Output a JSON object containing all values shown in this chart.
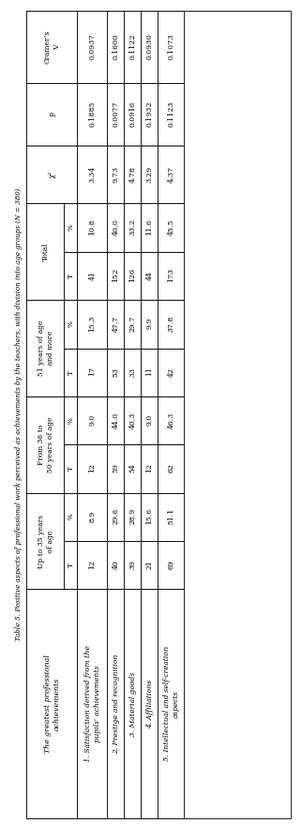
{
  "title": "Table 5. Positive aspects of professional work perceived as achievements by the teachers, with division into age groups (N = 380)",
  "col_header": "The greatest professional\nachievements",
  "group_headers": [
    "Up to 35 years\nof age",
    "From 36 to\n50 years of age",
    "51 years of age\nand more",
    "Total"
  ],
  "stat_headers": [
    "χ²",
    "p",
    "Cramer’s\nV"
  ],
  "sub_headers": [
    "T",
    "%"
  ],
  "rows": [
    {
      "label": "1. Satisfaction derived from the\npupils’ achievements",
      "up35_T": "12",
      "up35_pct": "8.9",
      "fr36_T": "12",
      "fr36_pct": "9.0",
      "ov51_T": "17",
      "ov51_pct": "15.3",
      "tot_T": "41",
      "tot_pct": "10.8",
      "chi2": "3.34",
      "p": "0.1885",
      "cramer": "0.0937"
    },
    {
      "label": "2. Prestige and recognition",
      "up35_T": "40",
      "up35_pct": "29.6",
      "fr36_T": "59",
      "fr36_pct": "44.0",
      "ov51_T": "53",
      "ov51_pct": "47.7",
      "tot_T": "152",
      "tot_pct": "40.0",
      "chi2": "9.73",
      "p": "0.0077",
      "cramer": "0.1600"
    },
    {
      "label": "3. Material goods",
      "up35_T": "39",
      "up35_pct": "28.9",
      "fr36_T": "54",
      "fr36_pct": "40.3",
      "ov51_T": "33",
      "ov51_pct": "29.7",
      "tot_T": "126",
      "tot_pct": "33.2",
      "chi2": "4.78",
      "p": "0.0916",
      "cramer": "0.1122"
    },
    {
      "label": "4. Affiliations",
      "up35_T": "21",
      "up35_pct": "15.6",
      "fr36_T": "12",
      "fr36_pct": "9.0",
      "ov51_T": "11",
      "ov51_pct": "9.9",
      "tot_T": "44",
      "tot_pct": "11.6",
      "chi2": "3.29",
      "p": "0.1932",
      "cramer": "0.0930"
    },
    {
      "label": "5. Intellectual and self-creation\naspects",
      "up35_T": "69",
      "up35_pct": "51.1",
      "fr36_T": "62",
      "fr36_pct": "46.3",
      "ov51_T": "42",
      "ov51_pct": "37.8",
      "tot_T": "173",
      "tot_pct": "45.5",
      "chi2": "4.37",
      "p": "0.1123",
      "cramer": "0.1073"
    }
  ],
  "bg_color": "#ffffff",
  "line_color": "#000000",
  "text_color": "#000000"
}
